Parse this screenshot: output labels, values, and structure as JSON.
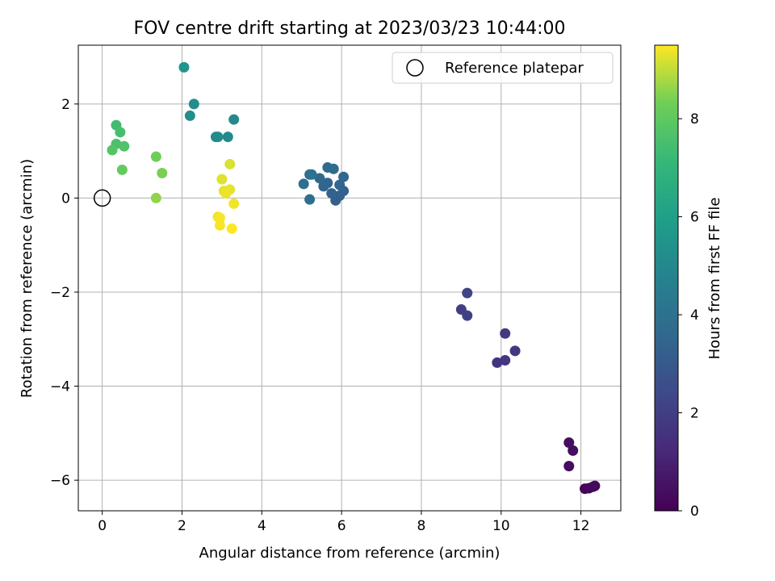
{
  "chart_data": {
    "type": "scatter",
    "title": "FOV centre drift starting at 2023/03/23 10:44:00",
    "xlabel": "Angular distance from reference (arcmin)",
    "ylabel": "Rotation from reference (arcmin)",
    "xlim": [
      -0.6,
      13.0
    ],
    "ylim": [
      -6.65,
      3.25
    ],
    "xticks": [
      0,
      2,
      4,
      6,
      8,
      10,
      12
    ],
    "yticks": [
      -6,
      -4,
      -2,
      0,
      2
    ],
    "xtick_labels": [
      "0",
      "2",
      "4",
      "6",
      "8",
      "10",
      "12"
    ],
    "ytick_labels": [
      "−6",
      "−4",
      "−2",
      "0",
      "2"
    ],
    "grid": true,
    "legend": {
      "placement": "top-right",
      "entries": [
        "Reference platepar"
      ]
    },
    "reference_point": {
      "x": 0,
      "y": 0,
      "label": "Reference platepar"
    },
    "colorbar": {
      "label": "Hours from first FF file",
      "colormap": "viridis",
      "range": [
        0,
        9.5
      ],
      "ticks": [
        0,
        2,
        4,
        6,
        8
      ],
      "tick_labels": [
        "0",
        "2",
        "4",
        "6",
        "8"
      ]
    },
    "points": [
      {
        "x": 12.1,
        "y": -6.18,
        "hours": 0.1
      },
      {
        "x": 12.2,
        "y": -6.17,
        "hours": 0.15
      },
      {
        "x": 12.3,
        "y": -6.14,
        "hours": 0.2
      },
      {
        "x": 12.35,
        "y": -6.12,
        "hours": 0.25
      },
      {
        "x": 11.7,
        "y": -5.7,
        "hours": 0.35
      },
      {
        "x": 11.8,
        "y": -5.37,
        "hours": 0.4
      },
      {
        "x": 11.7,
        "y": -5.2,
        "hours": 0.45
      },
      {
        "x": 9.9,
        "y": -3.5,
        "hours": 1.6
      },
      {
        "x": 10.1,
        "y": -3.45,
        "hours": 1.7
      },
      {
        "x": 10.35,
        "y": -3.25,
        "hours": 1.75
      },
      {
        "x": 10.1,
        "y": -2.88,
        "hours": 1.8
      },
      {
        "x": 9.0,
        "y": -2.37,
        "hours": 2.0
      },
      {
        "x": 9.15,
        "y": -2.5,
        "hours": 2.1
      },
      {
        "x": 9.15,
        "y": -2.02,
        "hours": 2.15
      },
      {
        "x": 5.85,
        "y": -0.05,
        "hours": 3.2
      },
      {
        "x": 5.95,
        "y": 0.05,
        "hours": 3.25
      },
      {
        "x": 6.05,
        "y": 0.15,
        "hours": 3.3
      },
      {
        "x": 5.75,
        "y": 0.1,
        "hours": 3.35
      },
      {
        "x": 5.55,
        "y": 0.25,
        "hours": 3.4
      },
      {
        "x": 5.65,
        "y": 0.32,
        "hours": 3.45
      },
      {
        "x": 5.95,
        "y": 0.28,
        "hours": 3.5
      },
      {
        "x": 6.05,
        "y": 0.45,
        "hours": 3.55
      },
      {
        "x": 5.45,
        "y": 0.42,
        "hours": 3.6
      },
      {
        "x": 5.65,
        "y": 0.65,
        "hours": 3.65
      },
      {
        "x": 5.8,
        "y": 0.62,
        "hours": 3.7
      },
      {
        "x": 5.2,
        "y": 0.5,
        "hours": 3.8
      },
      {
        "x": 5.05,
        "y": 0.3,
        "hours": 3.85
      },
      {
        "x": 5.2,
        "y": -0.03,
        "hours": 3.9
      },
      {
        "x": 5.25,
        "y": 0.5,
        "hours": 4.0
      },
      {
        "x": 3.3,
        "y": 1.67,
        "hours": 5.0
      },
      {
        "x": 3.15,
        "y": 1.3,
        "hours": 5.05
      },
      {
        "x": 2.85,
        "y": 1.3,
        "hours": 5.1
      },
      {
        "x": 2.9,
        "y": 1.3,
        "hours": 5.15
      },
      {
        "x": 2.3,
        "y": 2.0,
        "hours": 5.2
      },
      {
        "x": 2.2,
        "y": 1.75,
        "hours": 5.25
      },
      {
        "x": 2.05,
        "y": 2.78,
        "hours": 5.5
      },
      {
        "x": 0.35,
        "y": 1.55,
        "hours": 7.4
      },
      {
        "x": 0.45,
        "y": 1.4,
        "hours": 7.5
      },
      {
        "x": 0.35,
        "y": 1.15,
        "hours": 7.6
      },
      {
        "x": 0.55,
        "y": 1.1,
        "hours": 7.7
      },
      {
        "x": 0.25,
        "y": 1.02,
        "hours": 7.8
      },
      {
        "x": 0.5,
        "y": 0.6,
        "hours": 8.1
      },
      {
        "x": 1.35,
        "y": 0.88,
        "hours": 8.3
      },
      {
        "x": 1.5,
        "y": 0.53,
        "hours": 8.4
      },
      {
        "x": 1.35,
        "y": 0.0,
        "hours": 8.6
      },
      {
        "x": 3.2,
        "y": 0.72,
        "hours": 9.2
      },
      {
        "x": 3.0,
        "y": 0.4,
        "hours": 9.25
      },
      {
        "x": 3.05,
        "y": 0.15,
        "hours": 9.3
      },
      {
        "x": 3.2,
        "y": 0.18,
        "hours": 9.3
      },
      {
        "x": 3.1,
        "y": 0.1,
        "hours": 9.35
      },
      {
        "x": 3.3,
        "y": -0.12,
        "hours": 9.4
      },
      {
        "x": 2.9,
        "y": -0.4,
        "hours": 9.4
      },
      {
        "x": 2.95,
        "y": -0.42,
        "hours": 9.45
      },
      {
        "x": 2.95,
        "y": -0.58,
        "hours": 9.45
      },
      {
        "x": 3.25,
        "y": -0.65,
        "hours": 9.5
      }
    ]
  }
}
